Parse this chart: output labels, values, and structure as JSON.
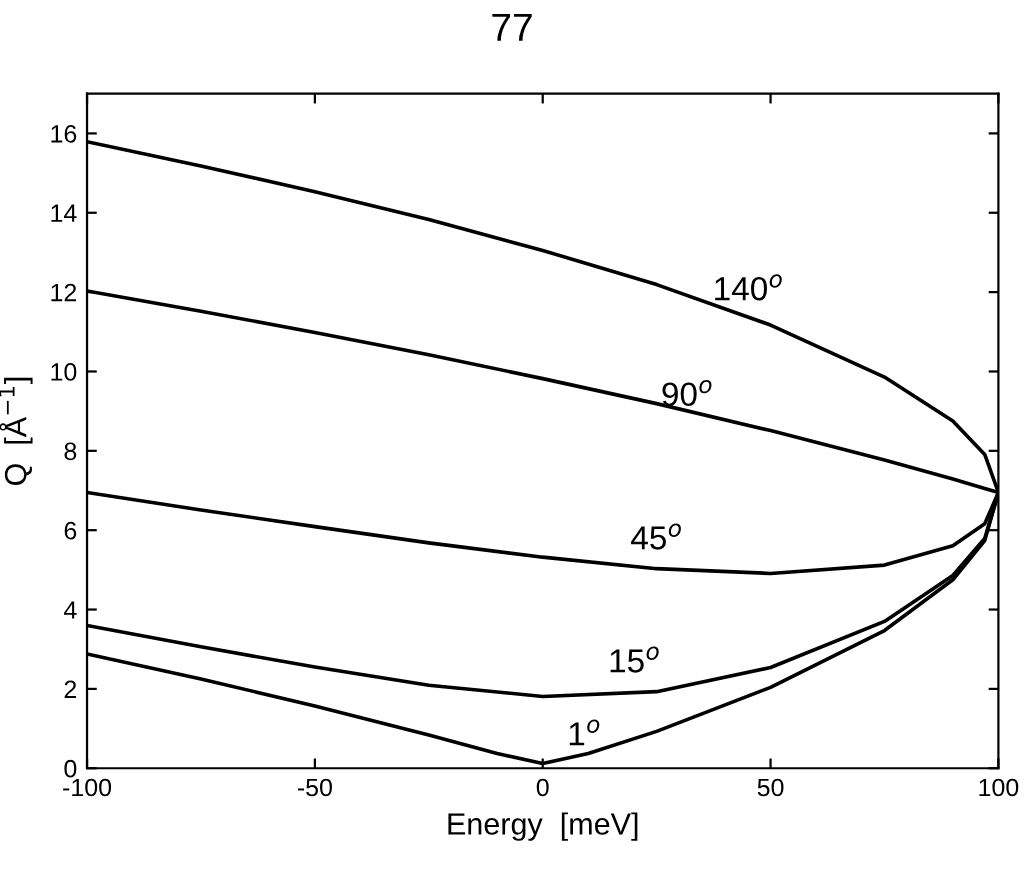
{
  "chart_data": {
    "type": "line",
    "xlabel": "Energy  [meV]",
    "ylabel": "Q  [Å$^{−1}$]",
    "x": [
      -100,
      -75,
      -50,
      -25,
      -10,
      0,
      10,
      25,
      50,
      75,
      90,
      97,
      100
    ],
    "series": [
      {
        "name": "140$^{o}$",
        "color": "#000000",
        "values": [
          15.79,
          15.18,
          14.53,
          13.83,
          null,
          13.05,
          null,
          12.19,
          11.17,
          9.86,
          8.75,
          7.91,
          6.95
        ]
      },
      {
        "name": "90$^{o}$",
        "color": "#000000",
        "values": [
          12.03,
          11.52,
          10.98,
          10.42,
          null,
          9.82,
          null,
          9.19,
          8.51,
          7.77,
          7.29,
          7.05,
          6.95
        ]
      },
      {
        "name": "45$^{o}$",
        "color": "#000000",
        "values": [
          6.95,
          6.51,
          6.09,
          5.68,
          null,
          5.32,
          null,
          5.03,
          4.91,
          5.12,
          5.61,
          6.16,
          6.95
        ]
      },
      {
        "name": "15$^{o}$",
        "color": "#000000",
        "values": [
          3.6,
          3.06,
          2.55,
          2.09,
          null,
          1.81,
          null,
          1.93,
          2.54,
          3.7,
          4.86,
          5.79,
          6.95
        ]
      },
      {
        "name": "1$^{o}$",
        "color": "#000000",
        "values": [
          2.88,
          2.25,
          1.57,
          0.84,
          0.37,
          0.12,
          0.37,
          0.93,
          2.04,
          3.47,
          4.75,
          5.74,
          6.95
        ]
      }
    ],
    "xlim": [
      -100,
      100
    ],
    "xticks": [
      -100,
      -50,
      0,
      50,
      100
    ],
    "ylim": [
      0,
      17
    ],
    "yticks": [
      0,
      2,
      4,
      6,
      8,
      10,
      12,
      14,
      16
    ],
    "grid": false,
    "marker": "none",
    "line_style": "solid",
    "annotations": [
      "77"
    ]
  }
}
